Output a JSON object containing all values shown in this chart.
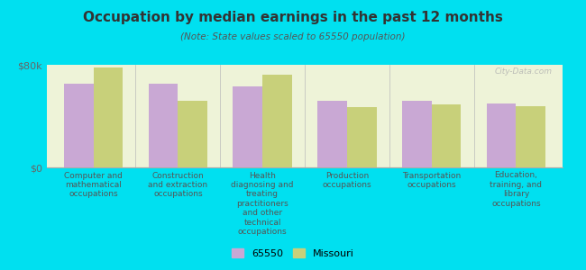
{
  "title": "Occupation by median earnings in the past 12 months",
  "subtitle": "(Note: State values scaled to 65550 population)",
  "categories": [
    "Computer and\nmathematical\noccupations",
    "Construction\nand extraction\noccupations",
    "Health\ndiagnosing and\ntreating\npractitioners\nand other\ntechnical\noccupations",
    "Production\noccupations",
    "Transportation\noccupations",
    "Education,\ntraining, and\nlibrary\noccupations"
  ],
  "values_65550": [
    65000,
    65000,
    63000,
    52000,
    52000,
    50000
  ],
  "values_missouri": [
    78000,
    52000,
    72000,
    47000,
    49000,
    48000
  ],
  "color_65550": "#c9a8d4",
  "color_missouri": "#c8d07a",
  "background_plot": "#eef3d8",
  "background_fig": "#00e0f0",
  "ylim": [
    0,
    80000
  ],
  "ytick_labels": [
    "$0",
    "$80k"
  ],
  "legend_label_1": "65550",
  "legend_label_2": "Missouri",
  "bar_width": 0.35,
  "watermark": "City-Data.com"
}
